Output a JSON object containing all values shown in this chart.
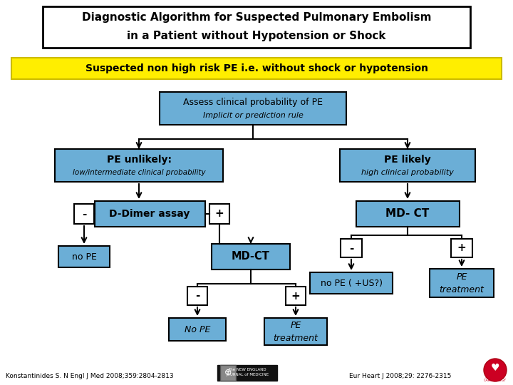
{
  "title_line1": "Diagnostic Algorithm for Suspected Pulmonary Embolism",
  "title_line2": "in a Patient without Hypotension or Shock",
  "subtitle": "Suspected non high risk PE i.e. without shock or hypotension",
  "bg_color": "#ffffff",
  "box_blue": "#6baed6",
  "box_white": "#ffffff",
  "footer_left": "Konstantinides S. N Engl J Med 2008;359:2804-2813",
  "footer_right": "Eur Heart J 2008;29: 2276-2315"
}
